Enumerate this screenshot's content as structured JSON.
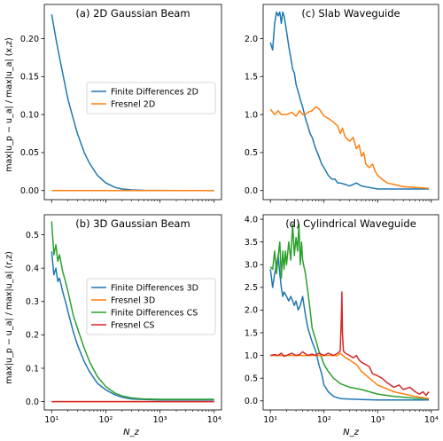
{
  "figure": {
    "ylabel_top": "max|u_p − u_a| / max|u_a|  (x,z)",
    "ylabel_bottom": "max|u_p − u_a| / max|u_a|  (r,z)",
    "xlabel": "N_z"
  },
  "chart_data": [
    {
      "id": "a",
      "type": "line",
      "title": "(a) 2D Gaussian Beam",
      "xscale": "log",
      "xlim": [
        10,
        10000
      ],
      "ylim": [
        -0.012,
        0.245
      ],
      "yticks": [
        0.0,
        0.05,
        0.1,
        0.15,
        0.2
      ],
      "yticklabels": [
        "0.00",
        "0.05",
        "0.10",
        "0.15",
        "0.20"
      ],
      "legend": "center-right",
      "series": [
        {
          "name": "Finite Differences 2D",
          "color": "#1f77b4",
          "x": [
            10,
            12,
            14,
            17,
            20,
            25,
            30,
            40,
            50,
            70,
            100,
            150,
            200,
            300,
            500,
            1000,
            3000,
            10000
          ],
          "y": [
            0.232,
            0.2,
            0.175,
            0.145,
            0.12,
            0.095,
            0.075,
            0.05,
            0.036,
            0.02,
            0.01,
            0.004,
            0.002,
            0.0008,
            0.0003,
            0.0001,
            0.0,
            0.0
          ]
        },
        {
          "name": "Fresnel 2D",
          "color": "#ff7f0e",
          "x": [
            10,
            10000
          ],
          "y": [
            0.0,
            0.0
          ]
        }
      ]
    },
    {
      "id": "b",
      "type": "line",
      "title": "(b) 3D Gaussian Beam",
      "xscale": "log",
      "xlim": [
        10,
        10000
      ],
      "ylim": [
        -0.025,
        0.56
      ],
      "yticks": [
        0.0,
        0.1,
        0.2,
        0.3,
        0.4,
        0.5
      ],
      "yticklabels": [
        "0.0",
        "0.1",
        "0.2",
        "0.3",
        "0.4",
        "0.5"
      ],
      "xticks": [
        10,
        100,
        1000,
        10000
      ],
      "xticklabels": [
        "10¹",
        "10²",
        "10³",
        "10⁴"
      ],
      "legend": "center-right",
      "series": [
        {
          "name": "Finite Differences 3D",
          "color": "#1f77b4",
          "x": [
            10,
            11,
            12,
            13,
            14,
            16,
            18,
            20,
            25,
            30,
            40,
            50,
            70,
            100,
            150,
            200,
            300,
            500,
            1000,
            3000,
            10000
          ],
          "y": [
            0.45,
            0.38,
            0.4,
            0.36,
            0.37,
            0.33,
            0.3,
            0.27,
            0.21,
            0.17,
            0.12,
            0.09,
            0.055,
            0.035,
            0.02,
            0.013,
            0.008,
            0.006,
            0.005,
            0.005,
            0.005
          ]
        },
        {
          "name": "Fresnel 3D",
          "color": "#ff7f0e",
          "x": [
            10,
            10000
          ],
          "y": [
            0.0,
            0.0
          ]
        },
        {
          "name": "Finite Differences CS",
          "color": "#2ca02c",
          "x": [
            10,
            11,
            12,
            13,
            14,
            16,
            18,
            20,
            25,
            30,
            40,
            50,
            70,
            100,
            150,
            200,
            300,
            500,
            1000,
            3000,
            10000
          ],
          "y": [
            0.54,
            0.44,
            0.47,
            0.42,
            0.44,
            0.39,
            0.36,
            0.33,
            0.26,
            0.22,
            0.16,
            0.12,
            0.075,
            0.045,
            0.025,
            0.017,
            0.011,
            0.008,
            0.007,
            0.007,
            0.007
          ]
        },
        {
          "name": "Fresnel CS",
          "color": "#d62728",
          "x": [
            10,
            10000
          ],
          "y": [
            0.0,
            0.0
          ]
        }
      ]
    },
    {
      "id": "c",
      "type": "line",
      "title": "(c) Slab Waveguide",
      "xscale": "log",
      "xlim": [
        10,
        10000
      ],
      "ylim": [
        -0.12,
        2.45
      ],
      "yticks": [
        0.0,
        0.5,
        1.0,
        1.5,
        2.0
      ],
      "yticklabels": [
        "0.0",
        "0.5",
        "1.0",
        "1.5",
        "2.0"
      ],
      "series": [
        {
          "name": "",
          "color": "#1f77b4",
          "x": [
            10,
            11,
            12,
            13,
            14,
            15,
            16,
            17,
            18,
            20,
            22,
            24,
            26,
            28,
            30,
            33,
            36,
            40,
            45,
            50,
            55,
            60,
            70,
            80,
            90,
            100,
            120,
            140,
            160,
            180,
            200,
            250,
            300,
            400,
            500,
            700,
            1000,
            2000,
            5000,
            9000
          ],
          "y": [
            1.95,
            1.85,
            2.2,
            2.35,
            2.3,
            2.35,
            2.2,
            2.35,
            2.3,
            2.1,
            1.9,
            1.75,
            1.6,
            1.55,
            1.4,
            1.3,
            1.2,
            1.1,
            0.95,
            0.85,
            0.75,
            0.7,
            0.55,
            0.45,
            0.35,
            0.3,
            0.2,
            0.15,
            0.15,
            0.1,
            0.1,
            0.08,
            0.06,
            0.1,
            0.06,
            0.04,
            0.02,
            0.02,
            0.02,
            0.02
          ]
        },
        {
          "name": "",
          "color": "#ff7f0e",
          "x": [
            10,
            12,
            14,
            16,
            20,
            25,
            30,
            35,
            40,
            45,
            50,
            60,
            70,
            80,
            100,
            120,
            150,
            180,
            200,
            220,
            250,
            300,
            350,
            400,
            450,
            500,
            550,
            600,
            700,
            800,
            900,
            1000,
            1200,
            1500,
            2000,
            3000,
            5000,
            9000
          ],
          "y": [
            1.07,
            1.0,
            1.05,
            1.0,
            1.0,
            1.03,
            0.98,
            1.05,
            1.0,
            1.0,
            1.03,
            1.05,
            1.1,
            1.08,
            0.98,
            0.95,
            0.9,
            0.85,
            0.75,
            0.82,
            0.7,
            0.65,
            0.7,
            0.55,
            0.6,
            0.45,
            0.5,
            0.35,
            0.3,
            0.35,
            0.25,
            0.2,
            0.15,
            0.1,
            0.08,
            0.05,
            0.04,
            0.03
          ]
        }
      ]
    },
    {
      "id": "d",
      "type": "line",
      "title": "(d) Cylindrical Waveguide",
      "xscale": "log",
      "xlim": [
        10,
        10000
      ],
      "ylim": [
        -0.2,
        4.1
      ],
      "yticks": [
        0.0,
        0.5,
        1.0,
        1.5,
        2.0,
        2.5,
        3.0,
        3.5,
        4.0
      ],
      "yticklabels": [
        "0.0",
        "0.5",
        "1.0",
        "1.5",
        "2.0",
        "2.5",
        "3.0",
        "3.5",
        "4.0"
      ],
      "xticks": [
        10,
        100,
        1000,
        10000
      ],
      "xticklabels": [
        "10¹",
        "10²",
        "10³",
        "10⁴"
      ],
      "series": [
        {
          "name": "",
          "color": "#1f77b4",
          "x": [
            10,
            11,
            12,
            13,
            14,
            15,
            16,
            17,
            18,
            20,
            22,
            24,
            26,
            28,
            30,
            33,
            36,
            40,
            45,
            50,
            60,
            70,
            80,
            90,
            100,
            120,
            150,
            200,
            300,
            500,
            1000,
            3000,
            9000
          ],
          "y": [
            2.9,
            2.5,
            2.8,
            3.0,
            3.2,
            2.8,
            2.5,
            2.3,
            2.4,
            2.3,
            2.2,
            2.3,
            2.2,
            2.1,
            2.2,
            2.0,
            2.1,
            2.3,
            1.9,
            1.6,
            1.3,
            1.1,
            0.8,
            0.6,
            0.35,
            0.2,
            0.1,
            0.05,
            0.04,
            0.03,
            0.02,
            0.02,
            0.02
          ]
        },
        {
          "name": "",
          "color": "#2ca02c",
          "x": [
            10,
            11,
            12,
            13,
            14,
            15,
            16,
            17,
            18,
            19,
            20,
            22,
            24,
            26,
            28,
            30,
            32,
            34,
            36,
            38,
            40,
            45,
            50,
            55,
            60,
            70,
            80,
            90,
            100,
            120,
            150,
            200,
            300,
            500,
            1000,
            2000,
            5000,
            9000
          ],
          "y": [
            2.95,
            2.9,
            3.3,
            2.8,
            3.2,
            3.5,
            2.7,
            3.3,
            2.9,
            3.3,
            3.0,
            3.5,
            3.1,
            3.9,
            3.2,
            3.6,
            3.3,
            3.9,
            3.0,
            3.5,
            3.1,
            2.8,
            2.4,
            2.0,
            1.6,
            1.35,
            1.1,
            0.95,
            0.8,
            0.65,
            0.5,
            0.38,
            0.3,
            0.25,
            0.15,
            0.1,
            0.06,
            0.05
          ]
        },
        {
          "name": "",
          "color": "#ff7f0e",
          "x": [
            10,
            20,
            40,
            80,
            120,
            150,
            180,
            200,
            250,
            300,
            400,
            500,
            700,
            1000,
            2000,
            5000,
            9000
          ],
          "y": [
            1.0,
            1.0,
            1.0,
            1.0,
            1.0,
            1.0,
            1.0,
            1.05,
            0.95,
            0.9,
            0.8,
            0.65,
            0.5,
            0.35,
            0.2,
            0.1,
            0.05
          ]
        },
        {
          "name": "",
          "color": "#d62728",
          "x": [
            10,
            12,
            14,
            16,
            18,
            20,
            25,
            30,
            35,
            40,
            50,
            60,
            70,
            80,
            100,
            120,
            150,
            180,
            200,
            210,
            215,
            220,
            230,
            250,
            300,
            350,
            400,
            450,
            500,
            600,
            700,
            800,
            1000,
            1200,
            1500,
            2000,
            2500,
            3000,
            4000,
            5000,
            6000,
            7000,
            8000,
            9000
          ],
          "y": [
            1.0,
            1.02,
            1.0,
            1.05,
            0.98,
            1.0,
            1.05,
            1.0,
            1.02,
            1.08,
            1.0,
            1.03,
            1.0,
            1.05,
            1.0,
            1.05,
            1.0,
            1.05,
            1.1,
            1.8,
            2.4,
            1.5,
            1.1,
            1.05,
            1.0,
            0.95,
            1.0,
            0.9,
            0.85,
            0.8,
            0.75,
            0.6,
            0.55,
            0.5,
            0.4,
            0.3,
            0.35,
            0.25,
            0.3,
            0.2,
            0.15,
            0.2,
            0.12,
            0.2
          ]
        }
      ]
    }
  ]
}
